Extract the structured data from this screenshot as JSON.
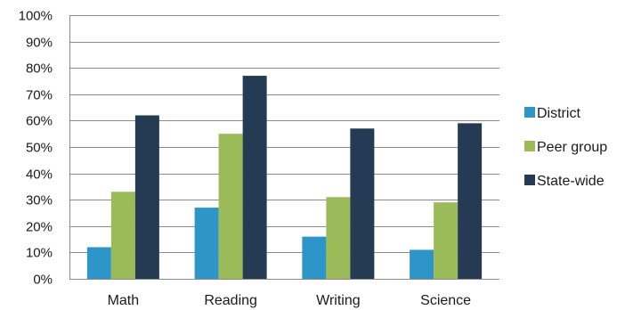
{
  "chart_data": {
    "type": "bar",
    "categories": [
      "Math",
      "Reading",
      "Writing",
      "Science"
    ],
    "series": [
      {
        "name": "District",
        "values": [
          12,
          27,
          16,
          11
        ],
        "color": "#2E95C9"
      },
      {
        "name": "Peer group",
        "values": [
          33,
          55,
          31,
          29
        ],
        "color": "#9BBB59"
      },
      {
        "name": "State-wide",
        "values": [
          62,
          77,
          57,
          59
        ],
        "color": "#243B53"
      }
    ],
    "y_ticks": [
      "0%",
      "10%",
      "20%",
      "30%",
      "40%",
      "50%",
      "60%",
      "70%",
      "80%",
      "90%",
      "100%"
    ],
    "ylim": [
      0,
      100
    ],
    "grid": true,
    "legend_position": "right"
  }
}
